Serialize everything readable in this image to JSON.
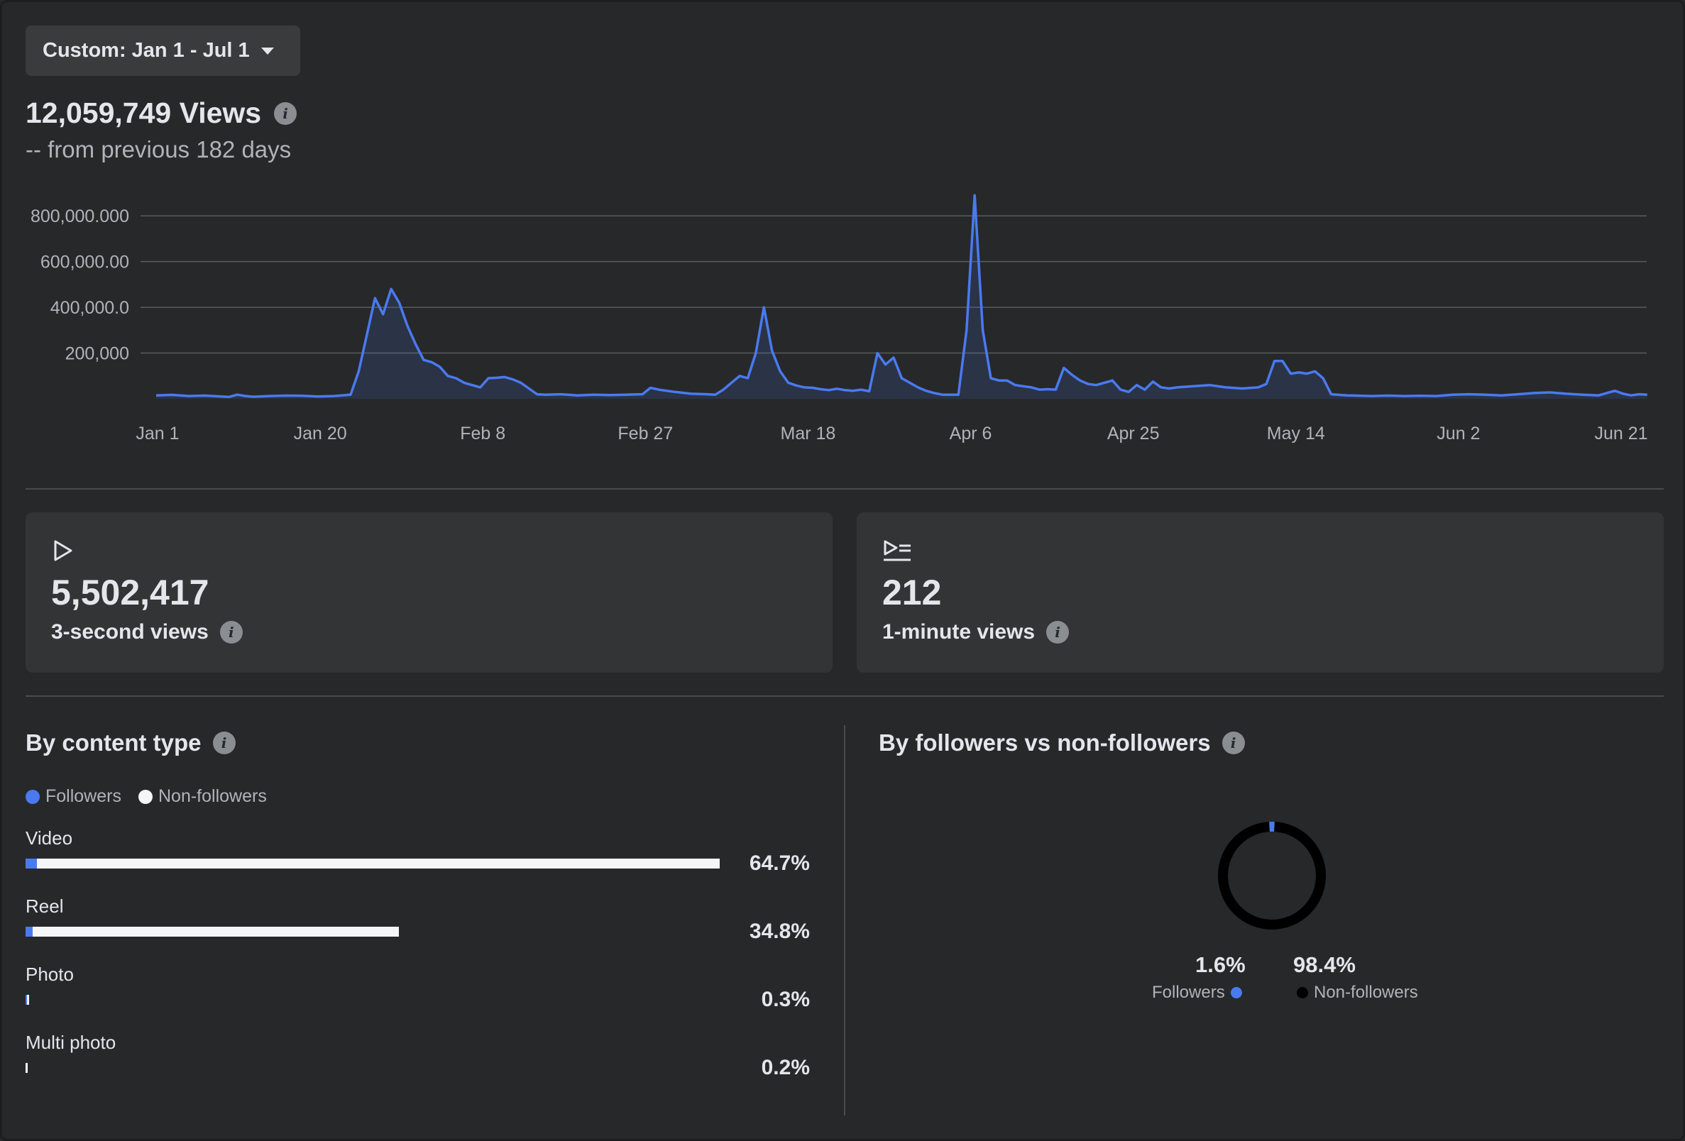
{
  "filter": {
    "date_range_label": "Custom: Jan 1 - Jul 1"
  },
  "summary": {
    "total_views": "12,059,749 Views",
    "comparison": "-- from previous 182 days"
  },
  "chart_data": {
    "type": "area",
    "x_tick_labels": [
      "Jan 1",
      "Jan 20",
      "Feb 8",
      "Feb 27",
      "Mar 18",
      "Apr 6",
      "Apr 25",
      "May 14",
      "Jun 2",
      "Jun 21"
    ],
    "y_tick_labels": [
      "200,000",
      "400,000.0",
      "600,000.00",
      "800,000.000"
    ],
    "y_ticks": [
      200000,
      400000,
      600000,
      800000
    ],
    "ylim": [
      0,
      900000
    ],
    "x_range_days": [
      0,
      182
    ],
    "grid": true,
    "line_color": "#4a7af0",
    "points": [
      [
        0,
        15000
      ],
      [
        2,
        17000
      ],
      [
        4,
        12000
      ],
      [
        6,
        14000
      ],
      [
        8,
        10000
      ],
      [
        9,
        8000
      ],
      [
        10,
        18000
      ],
      [
        11,
        12000
      ],
      [
        12,
        9000
      ],
      [
        14,
        12000
      ],
      [
        16,
        14000
      ],
      [
        18,
        13000
      ],
      [
        20,
        10000
      ],
      [
        22,
        12000
      ],
      [
        24,
        18000
      ],
      [
        25,
        120000
      ],
      [
        26,
        280000
      ],
      [
        27,
        440000
      ],
      [
        28,
        370000
      ],
      [
        29,
        480000
      ],
      [
        30,
        420000
      ],
      [
        31,
        320000
      ],
      [
        32,
        240000
      ],
      [
        33,
        170000
      ],
      [
        34,
        160000
      ],
      [
        35,
        140000
      ],
      [
        36,
        100000
      ],
      [
        37,
        90000
      ],
      [
        38,
        70000
      ],
      [
        39,
        60000
      ],
      [
        40,
        50000
      ],
      [
        41,
        90000
      ],
      [
        42,
        92000
      ],
      [
        43,
        95000
      ],
      [
        44,
        85000
      ],
      [
        45,
        70000
      ],
      [
        46,
        45000
      ],
      [
        47,
        20000
      ],
      [
        48,
        18000
      ],
      [
        50,
        20000
      ],
      [
        52,
        15000
      ],
      [
        54,
        18000
      ],
      [
        56,
        16000
      ],
      [
        58,
        18000
      ],
      [
        60,
        20000
      ],
      [
        61,
        48000
      ],
      [
        62,
        40000
      ],
      [
        64,
        30000
      ],
      [
        66,
        22000
      ],
      [
        68,
        20000
      ],
      [
        69,
        18000
      ],
      [
        70,
        40000
      ],
      [
        71,
        70000
      ],
      [
        72,
        100000
      ],
      [
        73,
        90000
      ],
      [
        74,
        200000
      ],
      [
        75,
        400000
      ],
      [
        76,
        210000
      ],
      [
        77,
        120000
      ],
      [
        78,
        70000
      ],
      [
        79,
        58000
      ],
      [
        80,
        50000
      ],
      [
        81,
        48000
      ],
      [
        82,
        42000
      ],
      [
        83,
        38000
      ],
      [
        84,
        44000
      ],
      [
        85,
        38000
      ],
      [
        86,
        35000
      ],
      [
        87,
        40000
      ],
      [
        88,
        33000
      ],
      [
        89,
        200000
      ],
      [
        90,
        150000
      ],
      [
        91,
        180000
      ],
      [
        92,
        90000
      ],
      [
        93,
        70000
      ],
      [
        94,
        50000
      ],
      [
        95,
        35000
      ],
      [
        96,
        25000
      ],
      [
        97,
        18000
      ],
      [
        98,
        18000
      ],
      [
        99,
        18000
      ],
      [
        100,
        300000
      ],
      [
        101,
        890000
      ],
      [
        102,
        300000
      ],
      [
        103,
        90000
      ],
      [
        104,
        80000
      ],
      [
        105,
        80000
      ],
      [
        106,
        60000
      ],
      [
        107,
        55000
      ],
      [
        108,
        50000
      ],
      [
        109,
        40000
      ],
      [
        110,
        42000
      ],
      [
        111,
        40000
      ],
      [
        112,
        135000
      ],
      [
        113,
        105000
      ],
      [
        114,
        80000
      ],
      [
        115,
        65000
      ],
      [
        116,
        60000
      ],
      [
        117,
        70000
      ],
      [
        118,
        80000
      ],
      [
        119,
        40000
      ],
      [
        120,
        30000
      ],
      [
        121,
        60000
      ],
      [
        122,
        40000
      ],
      [
        123,
        75000
      ],
      [
        124,
        50000
      ],
      [
        125,
        45000
      ],
      [
        126,
        50000
      ],
      [
        128,
        55000
      ],
      [
        130,
        60000
      ],
      [
        132,
        50000
      ],
      [
        134,
        45000
      ],
      [
        136,
        50000
      ],
      [
        137,
        65000
      ],
      [
        138,
        165000
      ],
      [
        139,
        165000
      ],
      [
        140,
        110000
      ],
      [
        141,
        115000
      ],
      [
        142,
        110000
      ],
      [
        143,
        120000
      ],
      [
        144,
        90000
      ],
      [
        145,
        20000
      ],
      [
        147,
        15000
      ],
      [
        150,
        12000
      ],
      [
        152,
        14000
      ],
      [
        154,
        12000
      ],
      [
        156,
        13000
      ],
      [
        158,
        12000
      ],
      [
        160,
        18000
      ],
      [
        162,
        20000
      ],
      [
        164,
        18000
      ],
      [
        166,
        15000
      ],
      [
        168,
        20000
      ],
      [
        170,
        25000
      ],
      [
        172,
        28000
      ],
      [
        174,
        22000
      ],
      [
        176,
        18000
      ],
      [
        178,
        15000
      ],
      [
        179,
        25000
      ],
      [
        180,
        35000
      ],
      [
        181,
        22000
      ],
      [
        182,
        15000
      ],
      [
        183,
        20000
      ],
      [
        184,
        18000
      ]
    ]
  },
  "stats": [
    {
      "value": "5,502,417",
      "label": "3-second views",
      "icon": "play-icon"
    },
    {
      "value": "212",
      "label": "1-minute views",
      "icon": "play-list-icon"
    }
  ],
  "content_type": {
    "title": "By content type",
    "legend": {
      "followers": "Followers",
      "non_followers": "Non-followers"
    },
    "colors": {
      "followers": "#4a7af0",
      "non_followers": "#f5f6f7"
    },
    "rows": [
      {
        "name": "Video",
        "pct_label": "64.7%",
        "share": 64.7,
        "followers_share": 1.6
      },
      {
        "name": "Reel",
        "pct_label": "34.8%",
        "share": 34.8,
        "followers_share": 1.6
      },
      {
        "name": "Photo",
        "pct_label": "0.3%",
        "share": 0.3,
        "followers_share": 50
      },
      {
        "name": "Multi photo",
        "pct_label": "0.2%",
        "share": 0.2,
        "followers_share": 0
      }
    ]
  },
  "followers_split": {
    "title": "By followers vs non-followers",
    "followers_pct": "1.6%",
    "followers_label": "Followers",
    "non_followers_pct": "98.4%",
    "non_followers_label": "Non-followers",
    "followers_value": 1.6,
    "colors": {
      "followers": "#4a7af0",
      "non_followers": "#000000"
    }
  }
}
